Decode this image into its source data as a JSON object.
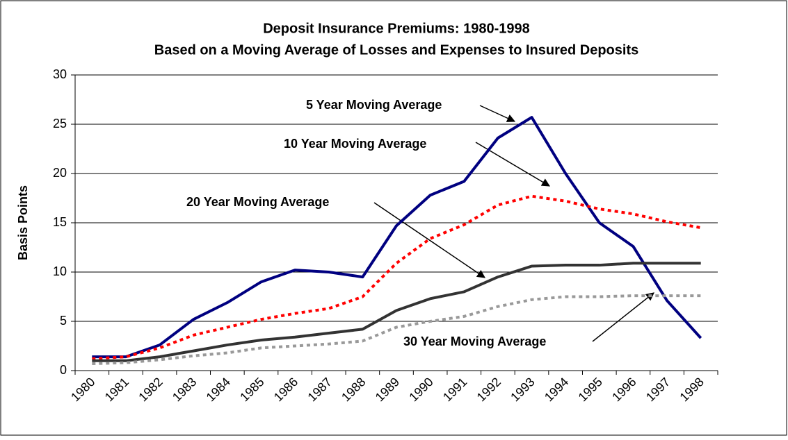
{
  "chart_data": {
    "type": "line",
    "title": "Deposit Insurance Premiums: 1980-1998",
    "subtitle": "Based on a Moving Average of Losses and Expenses to Insured Deposits",
    "y_label": "Basis Points",
    "categories": [
      "1980",
      "1981",
      "1982",
      "1983",
      "1984",
      "1985",
      "1986",
      "1987",
      "1988",
      "1989",
      "1990",
      "1991",
      "1992",
      "1993",
      "1994",
      "1995",
      "1996",
      "1997",
      "1998"
    ],
    "series": [
      {
        "name": "5 Year Moving Average",
        "color": "#000080",
        "dash": "solid",
        "values": [
          1.4,
          1.4,
          2.6,
          5.2,
          6.9,
          9.0,
          10.2,
          10.0,
          9.5,
          14.7,
          17.8,
          19.2,
          23.6,
          25.7,
          20.0,
          15.0,
          12.6,
          7.1,
          3.3
        ]
      },
      {
        "name": "10 Year Moving Average",
        "color": "#ff0000",
        "dash": "dotted",
        "values": [
          1.2,
          1.4,
          2.3,
          3.6,
          4.4,
          5.2,
          5.8,
          6.3,
          7.5,
          10.9,
          13.4,
          14.8,
          16.8,
          17.7,
          17.2,
          16.4,
          15.9,
          15.1,
          14.5
        ]
      },
      {
        "name": "20 Year Moving Average",
        "color": "#333333",
        "dash": "solid",
        "values": [
          1.0,
          1.0,
          1.4,
          2.0,
          2.6,
          3.1,
          3.4,
          3.8,
          4.2,
          6.1,
          7.3,
          8.0,
          9.5,
          10.6,
          10.7,
          10.7,
          10.9,
          10.9,
          10.9
        ]
      },
      {
        "name": "30 Year Moving Average",
        "color": "#999999",
        "dash": "dotted",
        "values": [
          0.7,
          0.8,
          1.1,
          1.5,
          1.8,
          2.3,
          2.5,
          2.7,
          3.0,
          4.4,
          5.0,
          5.5,
          6.5,
          7.2,
          7.5,
          7.5,
          7.6,
          7.6,
          7.6
        ]
      }
    ],
    "ylim": [
      0,
      30
    ],
    "yticks": [
      0,
      5,
      10,
      15,
      20,
      25,
      30
    ],
    "grid": true
  }
}
